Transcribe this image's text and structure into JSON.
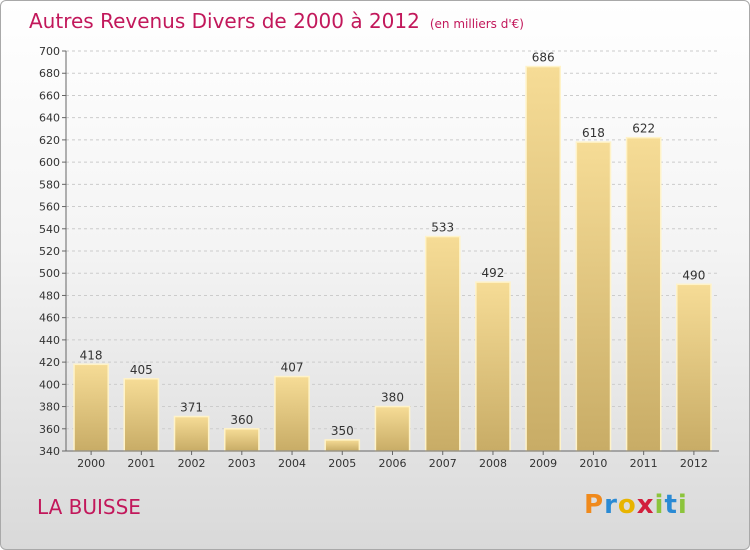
{
  "chart_data": {
    "type": "bar",
    "title": "Autres Revenus Divers de 2000 à 2012",
    "subtitle": "(en milliers d'€)",
    "categories": [
      "2000",
      "2001",
      "2002",
      "2003",
      "2004",
      "2005",
      "2006",
      "2007",
      "2008",
      "2009",
      "2010",
      "2011",
      "2012"
    ],
    "values": [
      418,
      405,
      371,
      360,
      407,
      350,
      380,
      533,
      492,
      686,
      618,
      622,
      490
    ],
    "ylim": [
      340,
      700
    ],
    "yticks": [
      340,
      360,
      380,
      400,
      420,
      440,
      460,
      480,
      500,
      520,
      540,
      560,
      580,
      600,
      620,
      640,
      660,
      680,
      700
    ],
    "grid": true,
    "bar_color": "#e8c878",
    "title_color": "#c2185b"
  },
  "commune": "LA BUISSE",
  "logo": {
    "letters": [
      "P",
      "r",
      "o",
      "x",
      "i",
      "t",
      "i"
    ],
    "colors": [
      "#f08a1c",
      "#2a8ad4",
      "#e8b400",
      "#d21f3c",
      "#8cc43c",
      "#2a8ad4",
      "#8cc43c"
    ]
  }
}
